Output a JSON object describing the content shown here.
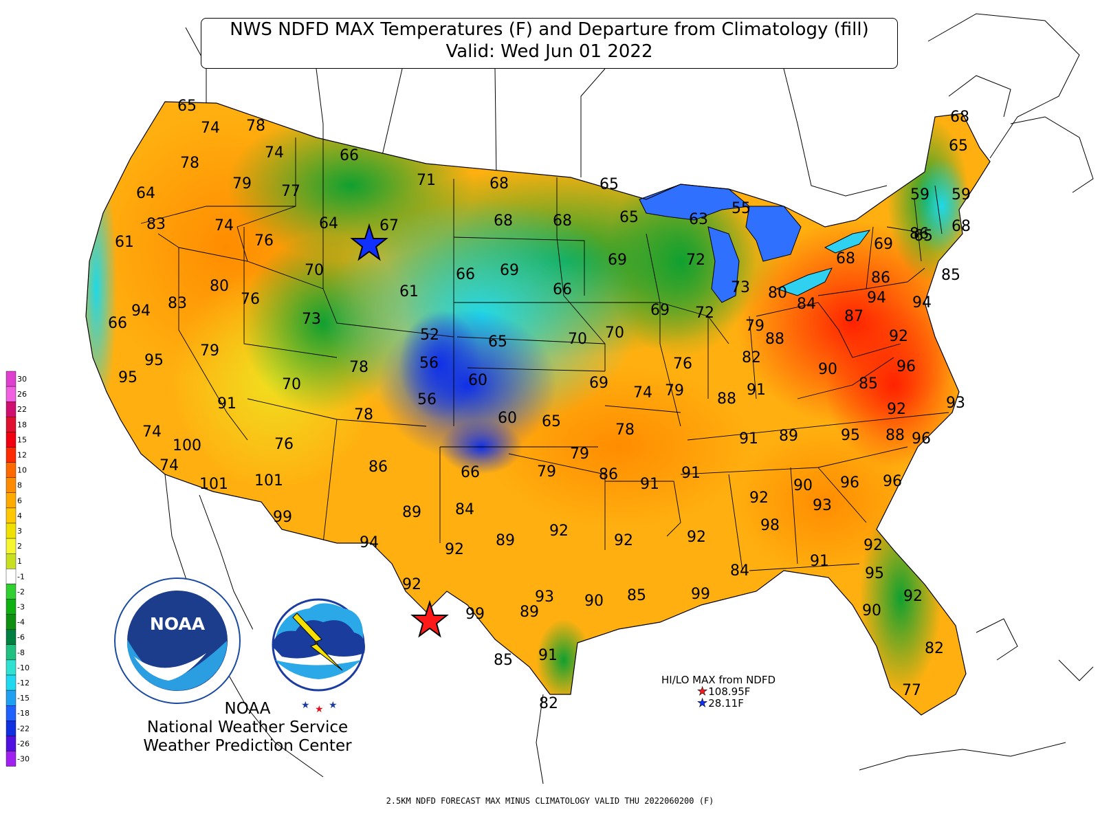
{
  "title": {
    "line1": "NWS NDFD MAX Temperatures (F) and Departure from Climatology (fill)",
    "line2": "Valid: Wed Jun 01 2022"
  },
  "footer": "2.5KM NDFD FORECAST MAX MINUS CLIMATOLOGY VALID THU 2022060200 (F)",
  "credits": {
    "line1": "NOAA",
    "line2": "National Weather Service",
    "line3": "Weather Prediction Center"
  },
  "logos": {
    "noaa": {
      "text": "NOAA",
      "ring_text": "NATIONAL OCEANIC AND ATMOSPHERIC ADMINISTRATION · U.S. DEPARTMENT OF COMMERCE"
    },
    "nws": {
      "ring_text": "NATIONAL WEATHER SERVICE"
    }
  },
  "hilo": {
    "title": "HI/LO MAX from NDFD",
    "hi": "108.95F",
    "lo": "28.11F",
    "hi_color": "#ff1a1a",
    "lo_color": "#1030ff",
    "hi_icon": "red-star-icon",
    "lo_icon": "blue-star-icon"
  },
  "legend": {
    "labels": [
      "30",
      "26",
      "22",
      "18",
      "15",
      "12",
      "10",
      "8",
      "6",
      "4",
      "3",
      "2",
      "1",
      "-1",
      "-2",
      "-3",
      "-4",
      "-6",
      "-8",
      "-10",
      "-12",
      "-15",
      "-18",
      "-22",
      "-26",
      "-30"
    ],
    "colors": [
      "#e040d0",
      "#f060e0",
      "#d01070",
      "#e01030",
      "#f00010",
      "#ff2a00",
      "#ff6a00",
      "#ff8c00",
      "#ffaa00",
      "#ffc800",
      "#f0e000",
      "#f5f530",
      "#c8e020",
      "#ffffff",
      "#30d030",
      "#10b010",
      "#109010",
      "#008040",
      "#20c080",
      "#30e0d0",
      "#20d8f0",
      "#20a0f0",
      "#2060ff",
      "#1030e0",
      "#5010e0",
      "#a020f0"
    ]
  },
  "stations": [
    {
      "t": "65"
    },
    {
      "t": "74"
    },
    {
      "t": "78"
    },
    {
      "t": "74"
    },
    {
      "t": "78"
    },
    {
      "t": "79"
    },
    {
      "t": "77"
    },
    {
      "t": "66"
    },
    {
      "t": "71"
    },
    {
      "t": "68"
    },
    {
      "t": "65"
    },
    {
      "t": "64"
    },
    {
      "t": "83"
    },
    {
      "t": "74"
    },
    {
      "t": "61"
    },
    {
      "t": "76"
    },
    {
      "t": "64"
    },
    {
      "t": "67"
    },
    {
      "t": "68"
    },
    {
      "t": "68"
    },
    {
      "t": "65"
    },
    {
      "t": "63"
    },
    {
      "t": "55"
    },
    {
      "t": "70"
    },
    {
      "t": "66"
    },
    {
      "t": "69"
    },
    {
      "t": "69"
    },
    {
      "t": "72"
    },
    {
      "t": "80"
    },
    {
      "t": "76"
    },
    {
      "t": "83"
    },
    {
      "t": "94"
    },
    {
      "t": "66"
    },
    {
      "t": "61"
    },
    {
      "t": "66"
    },
    {
      "t": "73"
    },
    {
      "t": "80"
    },
    {
      "t": "84"
    },
    {
      "t": "87"
    },
    {
      "t": "73"
    },
    {
      "t": "69"
    },
    {
      "t": "72"
    },
    {
      "t": "79"
    },
    {
      "t": "52"
    },
    {
      "t": "65"
    },
    {
      "t": "70"
    },
    {
      "t": "70"
    },
    {
      "t": "88"
    },
    {
      "t": "79"
    },
    {
      "t": "95"
    },
    {
      "t": "78"
    },
    {
      "t": "56"
    },
    {
      "t": "95"
    },
    {
      "t": "60"
    },
    {
      "t": "69"
    },
    {
      "t": "76"
    },
    {
      "t": "82"
    },
    {
      "t": "90"
    },
    {
      "t": "70"
    },
    {
      "t": "91"
    },
    {
      "t": "56"
    },
    {
      "t": "74"
    },
    {
      "t": "79"
    },
    {
      "t": "91"
    },
    {
      "t": "88"
    },
    {
      "t": "78"
    },
    {
      "t": "60"
    },
    {
      "t": "65"
    },
    {
      "t": "78"
    },
    {
      "t": "74"
    },
    {
      "t": "100"
    },
    {
      "t": "76"
    },
    {
      "t": "91"
    },
    {
      "t": "89"
    },
    {
      "t": "95"
    },
    {
      "t": "79"
    },
    {
      "t": "74"
    },
    {
      "t": "86"
    },
    {
      "t": "66"
    },
    {
      "t": "79"
    },
    {
      "t": "86"
    },
    {
      "t": "91"
    },
    {
      "t": "91"
    },
    {
      "t": "90"
    },
    {
      "t": "96"
    },
    {
      "t": "101"
    },
    {
      "t": "101"
    },
    {
      "t": "92"
    },
    {
      "t": "93"
    },
    {
      "t": "99"
    },
    {
      "t": "89"
    },
    {
      "t": "84"
    },
    {
      "t": "92"
    },
    {
      "t": "92"
    },
    {
      "t": "92"
    },
    {
      "t": "98"
    },
    {
      "t": "96"
    },
    {
      "t": "94"
    },
    {
      "t": "92"
    },
    {
      "t": "89"
    },
    {
      "t": "92"
    },
    {
      "t": "91"
    },
    {
      "t": "84"
    },
    {
      "t": "95"
    },
    {
      "t": "92"
    },
    {
      "t": "93"
    },
    {
      "t": "90"
    },
    {
      "t": "89"
    },
    {
      "t": "85"
    },
    {
      "t": "99"
    },
    {
      "t": "92"
    },
    {
      "t": "99"
    },
    {
      "t": "90"
    },
    {
      "t": "85"
    },
    {
      "t": "91"
    },
    {
      "t": "82"
    },
    {
      "t": "82"
    },
    {
      "t": "77"
    },
    {
      "t": "68"
    },
    {
      "t": "65"
    },
    {
      "t": "59"
    },
    {
      "t": "59"
    },
    {
      "t": "68"
    },
    {
      "t": "65"
    },
    {
      "t": "68"
    },
    {
      "t": "86"
    },
    {
      "t": "69"
    },
    {
      "t": "86"
    },
    {
      "t": "85"
    },
    {
      "t": "94"
    },
    {
      "t": "94"
    },
    {
      "t": "92"
    },
    {
      "t": "96"
    },
    {
      "t": "85"
    },
    {
      "t": "93"
    },
    {
      "t": "96"
    },
    {
      "t": "92"
    },
    {
      "t": "88"
    }
  ]
}
